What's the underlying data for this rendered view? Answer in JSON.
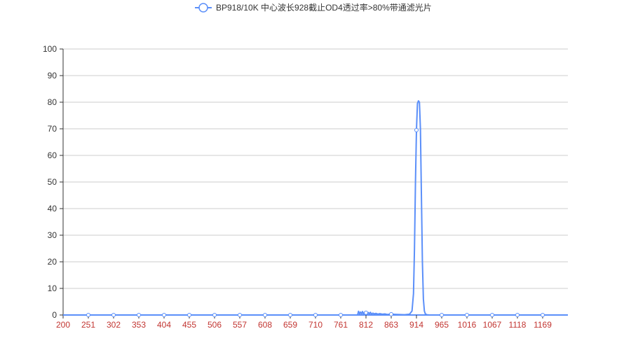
{
  "chart_data": {
    "type": "line",
    "title": "",
    "xlabel": "",
    "ylabel": "",
    "legend": {
      "position": "top-center"
    },
    "grid": {
      "y": true,
      "x": false
    },
    "xlim": [
      200,
      1220
    ],
    "ylim": [
      0,
      100
    ],
    "yticks": [
      0,
      10,
      20,
      30,
      40,
      50,
      60,
      70,
      80,
      90,
      100
    ],
    "xticks": [
      "200",
      "251",
      "302",
      "353",
      "404",
      "455",
      "506",
      "557",
      "608",
      "659",
      "710",
      "761",
      "812",
      "863",
      "914",
      "965",
      "1016",
      "1067",
      "1118",
      "1169"
    ],
    "series": [
      {
        "name": "BP918/10K 中心波长928截止OD4透过率>80%带通滤光片",
        "color": "#5b8ff9",
        "tick_color": "#c23531",
        "x": [
          200,
          251,
          302,
          353,
          404,
          455,
          506,
          557,
          608,
          659,
          710,
          761,
          780,
          795,
          797,
          799,
          801,
          803,
          805,
          807,
          809,
          811,
          813,
          815,
          817,
          819,
          821,
          823,
          826,
          829,
          832,
          836,
          840,
          845,
          850,
          855,
          863,
          875,
          890,
          900,
          905,
          908,
          910,
          912,
          914,
          916,
          918,
          920,
          922,
          924,
          926,
          928,
          930,
          932,
          935,
          940,
          950,
          965,
          1016,
          1067,
          1118,
          1169,
          1220
        ],
        "y": [
          0,
          0,
          0,
          0,
          0,
          0,
          0,
          0,
          0,
          0,
          0,
          0,
          0,
          0,
          1.4,
          0.3,
          1.1,
          0.4,
          1.3,
          0.3,
          1.0,
          0.5,
          1.2,
          0.3,
          0.9,
          0.4,
          1.0,
          0.3,
          0.7,
          0.4,
          0.6,
          0.3,
          0.5,
          0.3,
          0.4,
          0.2,
          0.3,
          0.2,
          0.1,
          0.3,
          1.5,
          8,
          25,
          50,
          69.5,
          79.5,
          80.5,
          80,
          70,
          45,
          20,
          6,
          1.5,
          0.4,
          0.1,
          0,
          0,
          0,
          0,
          0,
          0,
          0,
          0
        ]
      }
    ]
  }
}
